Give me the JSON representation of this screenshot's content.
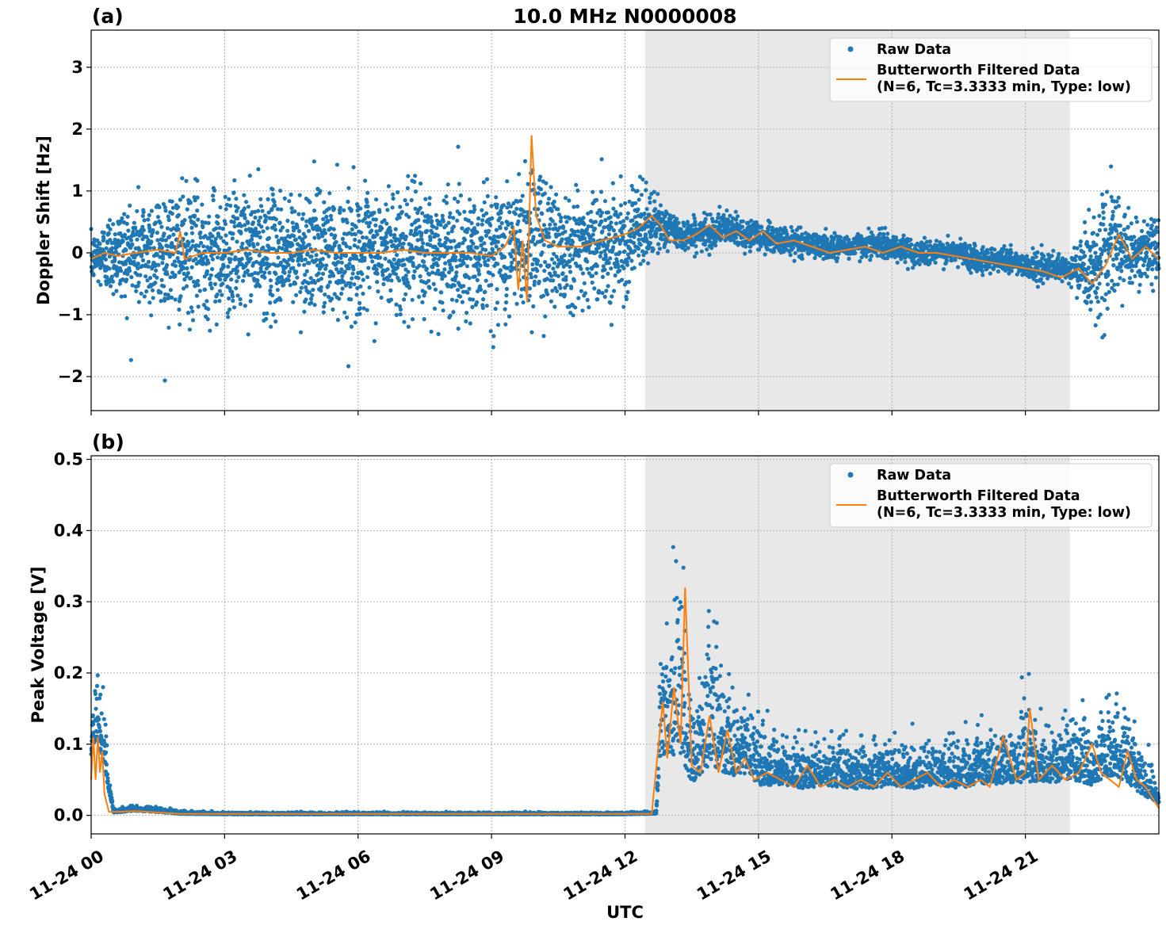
{
  "chart_data": [
    {
      "panel_label": "(a)",
      "title": "10.0 MHz N0000008",
      "type": "scatter",
      "xlabel": "",
      "ylabel": "Doppler Shift [Hz]",
      "xlim_hours": [
        0,
        24
      ],
      "ylim": [
        -2.55,
        3.6
      ],
      "yticks": [
        -2,
        -1,
        0,
        1,
        2,
        3
      ],
      "ytick_labels": [
        "−2",
        "−1",
        "0",
        "1",
        "2",
        "3"
      ],
      "grid": true,
      "legend_position": "top-right",
      "shaded_region_hours": [
        12.45,
        22.0
      ],
      "series": [
        {
          "name": "Raw Data",
          "style": "points",
          "color": "#1f77b4",
          "x": [
            0,
            0.5,
            1,
            1.5,
            2,
            2.5,
            3,
            3.5,
            4,
            4.5,
            5,
            5.5,
            6,
            6.5,
            7,
            7.5,
            8,
            8.5,
            9,
            9.5,
            9.9,
            10.5,
            11,
            11.5,
            12,
            12.4,
            12.8,
            13.2,
            13.7,
            14.2,
            14.8,
            15.5,
            16,
            16.5,
            17,
            17.5,
            18,
            18.5,
            19,
            19.5,
            20,
            20.5,
            21,
            21.5,
            22,
            22.5,
            23,
            23.5,
            24
          ],
          "y_center": [
            -0.1,
            0.0,
            0.0,
            0.05,
            0.0,
            0.0,
            0.0,
            0.05,
            0.0,
            0.0,
            0.05,
            0.0,
            0.0,
            0.0,
            0.05,
            0.0,
            0.0,
            0.0,
            0.05,
            0.05,
            0.3,
            0.1,
            0.1,
            0.15,
            0.2,
            0.4,
            0.45,
            0.3,
            0.3,
            0.4,
            0.3,
            0.2,
            0.15,
            0.1,
            0.1,
            0.15,
            0.1,
            0.0,
            0.0,
            0.0,
            -0.1,
            -0.1,
            -0.2,
            -0.25,
            -0.3,
            -0.2,
            0.1,
            0.0,
            0.0
          ],
          "y_spread": [
            0.35,
            0.7,
            0.9,
            1.0,
            1.0,
            1.0,
            1.0,
            0.95,
            0.95,
            0.95,
            0.95,
            0.95,
            0.95,
            0.95,
            1.0,
            1.0,
            1.0,
            1.0,
            1.0,
            1.1,
            1.3,
            1.0,
            0.9,
            0.85,
            0.8,
            0.7,
            0.35,
            0.25,
            0.25,
            0.25,
            0.25,
            0.2,
            0.2,
            0.2,
            0.2,
            0.2,
            0.2,
            0.2,
            0.2,
            0.2,
            0.2,
            0.2,
            0.2,
            0.2,
            0.25,
            0.8,
            0.9,
            0.5,
            0.5
          ]
        },
        {
          "name": "Butterworth Filtered Data\n(N=6, Tc=3.3333 min, Type: low)",
          "style": "line",
          "color": "#ff7f0e",
          "x": [
            0,
            0.3,
            0.6,
            1,
            1.5,
            1.9,
            2.0,
            2.1,
            2.5,
            3,
            3.5,
            4,
            4.5,
            5,
            5.5,
            6,
            6.5,
            7,
            7.5,
            8,
            8.5,
            9,
            9.3,
            9.5,
            9.6,
            9.7,
            9.8,
            9.9,
            10.0,
            10.2,
            10.5,
            11,
            11.5,
            12,
            12.3,
            12.6,
            12.8,
            13.0,
            13.3,
            13.6,
            13.9,
            14.2,
            14.5,
            14.8,
            15.1,
            15.4,
            15.8,
            16.2,
            16.6,
            17.0,
            17.4,
            17.8,
            18.2,
            18.6,
            19.0,
            19.4,
            19.8,
            20.2,
            20.6,
            21.0,
            21.4,
            21.8,
            22.2,
            22.5,
            22.8,
            23.1,
            23.4,
            23.7,
            24
          ],
          "y": [
            -0.1,
            0.0,
            -0.05,
            0.0,
            0.05,
            0.0,
            0.35,
            -0.1,
            0.0,
            0.0,
            0.05,
            0.0,
            0.0,
            0.05,
            0.0,
            0.0,
            0.0,
            0.05,
            0.0,
            0.0,
            0.0,
            -0.05,
            0.1,
            0.4,
            -0.6,
            0.2,
            -0.8,
            1.9,
            0.6,
            0.2,
            0.1,
            0.1,
            0.2,
            0.3,
            0.4,
            0.6,
            0.45,
            0.2,
            0.2,
            0.3,
            0.45,
            0.25,
            0.35,
            0.2,
            0.35,
            0.15,
            0.2,
            0.1,
            0.0,
            0.05,
            0.1,
            0.0,
            0.1,
            0.0,
            0.0,
            -0.05,
            -0.1,
            -0.15,
            -0.2,
            -0.25,
            -0.3,
            -0.4,
            -0.25,
            -0.5,
            -0.2,
            0.3,
            -0.1,
            0.1,
            -0.1
          ]
        }
      ]
    },
    {
      "panel_label": "(b)",
      "title": "",
      "type": "scatter",
      "xlabel": "UTC",
      "ylabel": "Peak Voltage [V]",
      "xlim_hours": [
        0,
        24
      ],
      "ylim": [
        -0.026,
        0.505
      ],
      "yticks": [
        0.0,
        0.1,
        0.2,
        0.3,
        0.4,
        0.5
      ],
      "ytick_labels": [
        "0.0",
        "0.1",
        "0.2",
        "0.3",
        "0.4",
        "0.5"
      ],
      "xticks_hours": [
        0,
        3,
        6,
        9,
        12,
        15,
        18,
        21
      ],
      "xtick_labels": [
        "11-24 00",
        "11-24 03",
        "11-24 06",
        "11-24 09",
        "11-24 12",
        "11-24 15",
        "11-24 18",
        "11-24 21"
      ],
      "grid": true,
      "legend_position": "top-right",
      "shaded_region_hours": [
        12.45,
        22.0
      ],
      "series": [
        {
          "name": "Raw Data",
          "style": "points",
          "color": "#1f77b4",
          "x": [
            0,
            0.15,
            0.3,
            0.5,
            1,
            1.5,
            2,
            3,
            6,
            9,
            12,
            12.7,
            12.8,
            13.0,
            13.2,
            13.5,
            13.8,
            14.0,
            14.3,
            14.6,
            15.0,
            15.5,
            16,
            16.5,
            17,
            17.5,
            18,
            18.5,
            19,
            19.5,
            20,
            20.5,
            21,
            21.5,
            22,
            22.5,
            23,
            23.5,
            24
          ],
          "y_center": [
            0.1,
            0.12,
            0.08,
            0.005,
            0.008,
            0.006,
            0.003,
            0.002,
            0.002,
            0.002,
            0.002,
            0.003,
            0.12,
            0.11,
            0.15,
            0.07,
            0.1,
            0.12,
            0.08,
            0.08,
            0.06,
            0.055,
            0.05,
            0.055,
            0.05,
            0.05,
            0.055,
            0.05,
            0.055,
            0.05,
            0.06,
            0.055,
            0.07,
            0.06,
            0.07,
            0.06,
            0.08,
            0.05,
            0.02
          ],
          "y_spread": [
            0.06,
            0.08,
            0.07,
            0.004,
            0.006,
            0.005,
            0.003,
            0.002,
            0.002,
            0.002,
            0.002,
            0.002,
            0.14,
            0.12,
            0.25,
            0.1,
            0.14,
            0.2,
            0.1,
            0.1,
            0.07,
            0.05,
            0.05,
            0.05,
            0.05,
            0.05,
            0.05,
            0.05,
            0.05,
            0.05,
            0.06,
            0.05,
            0.09,
            0.06,
            0.08,
            0.07,
            0.09,
            0.06,
            0.02
          ]
        },
        {
          "name": "Butterworth Filtered Data\n(N=6, Tc=3.3333 min, Type: low)",
          "style": "line",
          "color": "#ff7f0e",
          "x": [
            0,
            0.05,
            0.1,
            0.15,
            0.2,
            0.25,
            0.3,
            0.4,
            0.6,
            1,
            2,
            4,
            6,
            8,
            10,
            12,
            12.6,
            12.85,
            12.95,
            13.1,
            13.25,
            13.35,
            13.5,
            13.7,
            13.9,
            14.1,
            14.3,
            14.5,
            14.7,
            14.9,
            15.2,
            15.5,
            15.8,
            16.1,
            16.4,
            16.7,
            17.0,
            17.3,
            17.6,
            17.9,
            18.2,
            18.5,
            18.8,
            19.1,
            19.4,
            19.7,
            20.0,
            20.2,
            20.5,
            20.8,
            21.0,
            21.1,
            21.3,
            21.6,
            21.9,
            22.2,
            22.5,
            22.7,
            22.9,
            23.1,
            23.3,
            23.5,
            23.7,
            23.9,
            24
          ],
          "y": [
            0.05,
            0.11,
            0.05,
            0.11,
            0.06,
            0.09,
            0.03,
            0.005,
            0.005,
            0.006,
            0.002,
            0.002,
            0.002,
            0.002,
            0.002,
            0.002,
            0.002,
            0.16,
            0.08,
            0.18,
            0.1,
            0.32,
            0.07,
            0.06,
            0.14,
            0.06,
            0.12,
            0.06,
            0.08,
            0.05,
            0.06,
            0.05,
            0.04,
            0.07,
            0.04,
            0.05,
            0.04,
            0.05,
            0.04,
            0.06,
            0.04,
            0.05,
            0.06,
            0.04,
            0.05,
            0.04,
            0.05,
            0.04,
            0.11,
            0.05,
            0.06,
            0.15,
            0.05,
            0.07,
            0.05,
            0.06,
            0.1,
            0.06,
            0.05,
            0.04,
            0.09,
            0.05,
            0.04,
            0.02,
            0.01
          ]
        }
      ]
    }
  ]
}
